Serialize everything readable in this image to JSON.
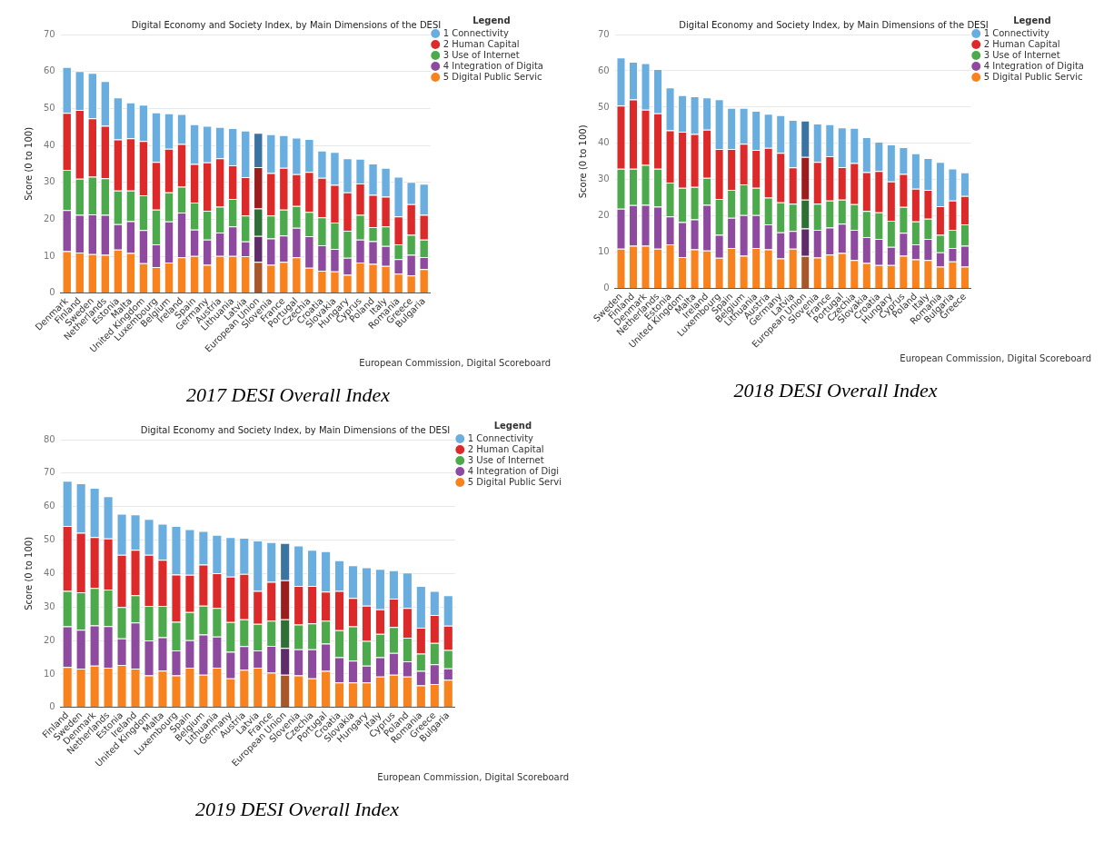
{
  "chart_data": [
    {
      "type": "bar",
      "stacked": true,
      "title": "Digital Economy and Society Index, by Main Dimensions of the DESI",
      "ylabel": "Score (0 to 100)",
      "legend_title": "Legend",
      "legend": "top right",
      "grid": "y",
      "ylim": [
        0,
        70
      ],
      "yticks": [
        0,
        10,
        20,
        30,
        40,
        50,
        60,
        70
      ],
      "annotations": [
        "European Commission, Digital Scoreboard",
        "2017 DESI Overall Index"
      ],
      "categories": [
        "Denmark",
        "Finland",
        "Sweden",
        "Netherlands",
        "Estonia",
        "Malta",
        "United Kingdom",
        "Luxembourg",
        "Belgium",
        "Ireland",
        "Spain",
        "Germany",
        "Austria",
        "Lithuania",
        "Latvia",
        "European Union",
        "Slovenia",
        "France",
        "Portugal",
        "Czechia",
        "Croatia",
        "Slovakia",
        "Hungary",
        "Cyprus",
        "Poland",
        "Italy",
        "Romania",
        "Greece",
        "Bulgaria"
      ],
      "series": [
        {
          "name": "5 Digital Public Servic",
          "color": "#f7821e",
          "colors": [
            "#f7821e",
            "#f7821e",
            "#f7821e",
            "#f7821e",
            "#f7821e",
            "#f7821e",
            "#f7821e",
            "#f7821e",
            "#f7821e",
            "#f7821e",
            "#f7821e",
            "#f7821e",
            "#f7821e",
            "#f7821e",
            "#f7821e",
            "#a8572a",
            "#f7821e",
            "#f7821e",
            "#f7821e",
            "#f7821e",
            "#f7821e",
            "#f7821e",
            "#f7821e",
            "#f7821e",
            "#f7821e",
            "#f7821e",
            "#f7821e",
            "#f7821e",
            "#f7821e"
          ],
          "values": [
            11.4,
            11.0,
            10.6,
            10.4,
            11.8,
            10.9,
            8.1,
            7.1,
            8.3,
            9.7,
            10.1,
            7.7,
            10.1,
            10.1,
            10.0,
            8.5,
            7.7,
            8.5,
            9.7,
            6.9,
            6.1,
            5.9,
            5.0,
            8.3,
            7.9,
            7.4,
            5.3,
            4.8,
            6.5
          ]
        },
        {
          "name": "4 Integration of Digita",
          "color": "#8e4a9e",
          "colors": [
            "#8e4a9e",
            "#8e4a9e",
            "#8e4a9e",
            "#8e4a9e",
            "#8e4a9e",
            "#8e4a9e",
            "#8e4a9e",
            "#8e4a9e",
            "#8e4a9e",
            "#8e4a9e",
            "#8e4a9e",
            "#8e4a9e",
            "#8e4a9e",
            "#8e4a9e",
            "#8e4a9e",
            "#5e2c68",
            "#8e4a9e",
            "#8e4a9e",
            "#8e4a9e",
            "#8e4a9e",
            "#8e4a9e",
            "#8e4a9e",
            "#8e4a9e",
            "#8e4a9e",
            "#8e4a9e",
            "#8e4a9e",
            "#8e4a9e",
            "#8e4a9e",
            "#8e4a9e"
          ],
          "values": [
            11.1,
            10.2,
            10.7,
            10.8,
            6.9,
            8.6,
            9.0,
            6.1,
            11.1,
            12.1,
            7.1,
            6.8,
            6.3,
            8.0,
            4.0,
            7.0,
            7.1,
            7.1,
            8.0,
            8.5,
            6.9,
            6.1,
            4.6,
            6.2,
            6.2,
            5.4,
            3.9,
            5.6,
            3.3
          ]
        },
        {
          "name": "3 Use of Internet",
          "color": "#4caa4c",
          "colors": [
            "#4caa4c",
            "#4caa4c",
            "#4caa4c",
            "#4caa4c",
            "#4caa4c",
            "#4caa4c",
            "#4caa4c",
            "#4caa4c",
            "#4caa4c",
            "#4caa4c",
            "#4caa4c",
            "#4caa4c",
            "#4caa4c",
            "#4caa4c",
            "#4caa4c",
            "#2f6e35",
            "#4caa4c",
            "#4caa4c",
            "#4caa4c",
            "#4caa4c",
            "#4caa4c",
            "#4caa4c",
            "#4caa4c",
            "#4caa4c",
            "#4caa4c",
            "#4caa4c",
            "#4caa4c",
            "#4caa4c",
            "#4caa4c"
          ],
          "values": [
            10.9,
            9.8,
            10.2,
            9.9,
            9.1,
            8.3,
            9.4,
            9.4,
            7.9,
            7.0,
            7.3,
            7.8,
            7.0,
            7.4,
            7.0,
            7.4,
            6.2,
            7.0,
            5.9,
            6.6,
            7.5,
            7.1,
            7.3,
            6.7,
            3.8,
            5.3,
            4.0,
            5.4,
            4.7
          ]
        },
        {
          "name": "2 Human Capital",
          "color": "#dc2a2a",
          "colors": [
            "#dc2a2a",
            "#dc2a2a",
            "#dc2a2a",
            "#dc2a2a",
            "#dc2a2a",
            "#dc2a2a",
            "#dc2a2a",
            "#dc2a2a",
            "#dc2a2a",
            "#dc2a2a",
            "#dc2a2a",
            "#dc2a2a",
            "#dc2a2a",
            "#dc2a2a",
            "#dc2a2a",
            "#9a1e1e",
            "#dc2a2a",
            "#dc2a2a",
            "#dc2a2a",
            "#dc2a2a",
            "#dc2a2a",
            "#dc2a2a",
            "#dc2a2a",
            "#dc2a2a",
            "#dc2a2a",
            "#dc2a2a",
            "#dc2a2a",
            "#dc2a2a",
            "#dc2a2a"
          ],
          "values": [
            15.4,
            18.6,
            15.8,
            14.2,
            13.8,
            14.1,
            14.7,
            12.9,
            11.8,
            11.6,
            10.5,
            13.1,
            13.1,
            9.1,
            10.4,
            11.2,
            11.5,
            11.3,
            8.6,
            10.8,
            10.7,
            10.2,
            10.4,
            8.5,
            8.7,
            8.0,
            7.6,
            8.3,
            6.7
          ]
        },
        {
          "name": "1 Connectivity",
          "color": "#6aaee0",
          "colors": [
            "#6aaee0",
            "#6aaee0",
            "#6aaee0",
            "#6aaee0",
            "#6aaee0",
            "#6aaee0",
            "#6aaee0",
            "#6aaee0",
            "#6aaee0",
            "#6aaee0",
            "#6aaee0",
            "#6aaee0",
            "#6aaee0",
            "#6aaee0",
            "#6aaee0",
            "#3b74a0",
            "#6aaee0",
            "#6aaee0",
            "#6aaee0",
            "#6aaee0",
            "#6aaee0",
            "#6aaee0",
            "#6aaee0",
            "#6aaee0",
            "#6aaee0",
            "#6aaee0",
            "#6aaee0",
            "#6aaee0",
            "#6aaee0"
          ],
          "values": [
            12.4,
            10.5,
            12.3,
            12.1,
            11.4,
            9.7,
            9.8,
            13.4,
            9.6,
            8.1,
            10.7,
            9.9,
            8.5,
            10.1,
            12.6,
            9.3,
            10.5,
            8.9,
            9.9,
            8.9,
            7.4,
            8.9,
            9.2,
            6.7,
            8.5,
            7.8,
            10.7,
            6.0,
            8.4
          ]
        }
      ]
    },
    {
      "type": "bar",
      "stacked": true,
      "title": "Digital Economy and Society Index, by Main Dimensions of the DESI",
      "ylabel": "Score (0 to 100)",
      "legend_title": "Legend",
      "legend": "top right",
      "grid": "y",
      "ylim": [
        0,
        70
      ],
      "yticks": [
        0,
        10,
        20,
        30,
        40,
        50,
        60,
        70
      ],
      "annotations": [
        "European Commission, Digital Scoreboard",
        "2018 DESI Overall Index"
      ],
      "categories": [
        "Sweden",
        "Finland",
        "Denmark",
        "Netherlands",
        "Estonia",
        "United Kingdom",
        "Malta",
        "Ireland",
        "Luxembourg",
        "Spain",
        "Belgium",
        "Lithuania",
        "Austria",
        "Germany",
        "Latvia",
        "European Union",
        "Slovenia",
        "France",
        "Portugal",
        "Czechia",
        "Slovakia",
        "Croatia",
        "Hungary",
        "Cyprus",
        "Poland",
        "Italy",
        "Romania",
        "Bulgaria",
        "Greece"
      ],
      "series": [
        {
          "name": "5 Digital Public Servic",
          "color": "#f7821e",
          "colors": [
            "#f7821e",
            "#f7821e",
            "#f7821e",
            "#f7821e",
            "#f7821e",
            "#f7821e",
            "#f7821e",
            "#f7821e",
            "#f7821e",
            "#f7821e",
            "#f7821e",
            "#f7821e",
            "#f7821e",
            "#f7821e",
            "#f7821e",
            "#a8572a",
            "#f7821e",
            "#f7821e",
            "#f7821e",
            "#f7821e",
            "#f7821e",
            "#f7821e",
            "#f7821e",
            "#f7821e",
            "#f7821e",
            "#f7821e",
            "#f7821e",
            "#f7821e",
            "#f7821e"
          ],
          "values": [
            11.0,
            11.8,
            11.8,
            11.0,
            12.2,
            8.7,
            10.8,
            10.5,
            8.5,
            11.2,
            9.1,
            11.2,
            10.8,
            8.3,
            11.0,
            9.0,
            8.6,
            9.4,
            9.8,
            7.9,
            7.1,
            6.5,
            6.5,
            9.1,
            8.1,
            7.9,
            6.1,
            7.5,
            6.1
          ]
        },
        {
          "name": "4 Integration of Digita",
          "color": "#8e4a9e",
          "colors": [
            "#8e4a9e",
            "#8e4a9e",
            "#8e4a9e",
            "#8e4a9e",
            "#8e4a9e",
            "#8e4a9e",
            "#8e4a9e",
            "#8e4a9e",
            "#8e4a9e",
            "#8e4a9e",
            "#8e4a9e",
            "#8e4a9e",
            "#8e4a9e",
            "#8e4a9e",
            "#8e4a9e",
            "#5e2c68",
            "#8e4a9e",
            "#8e4a9e",
            "#8e4a9e",
            "#8e4a9e",
            "#8e4a9e",
            "#8e4a9e",
            "#8e4a9e",
            "#8e4a9e",
            "#8e4a9e",
            "#8e4a9e",
            "#8e4a9e",
            "#8e4a9e",
            "#8e4a9e"
          ],
          "values": [
            11.0,
            11.2,
            11.3,
            11.6,
            7.7,
            9.6,
            8.3,
            12.6,
            6.3,
            8.3,
            11.2,
            9.1,
            6.9,
            7.2,
            4.9,
            7.6,
            7.6,
            7.4,
            8.1,
            8.3,
            7.1,
            7.2,
            5.0,
            6.3,
            4.1,
            5.8,
            3.9,
            3.7,
            5.7
          ]
        },
        {
          "name": "3 Use of Internet",
          "color": "#4caa4c",
          "colors": [
            "#4caa4c",
            "#4caa4c",
            "#4caa4c",
            "#4caa4c",
            "#4caa4c",
            "#4caa4c",
            "#4caa4c",
            "#4caa4c",
            "#4caa4c",
            "#4caa4c",
            "#4caa4c",
            "#4caa4c",
            "#4caa4c",
            "#4caa4c",
            "#4caa4c",
            "#2f6e35",
            "#4caa4c",
            "#4caa4c",
            "#4caa4c",
            "#4caa4c",
            "#4caa4c",
            "#4caa4c",
            "#4caa4c",
            "#4caa4c",
            "#4caa4c",
            "#4caa4c",
            "#4caa4c",
            "#4caa4c",
            "#4caa4c"
          ],
          "values": [
            11.0,
            10.0,
            11.0,
            10.4,
            9.3,
            9.5,
            8.9,
            7.4,
            9.9,
            7.7,
            8.4,
            7.5,
            7.4,
            8.3,
            7.5,
            7.9,
            7.2,
            7.5,
            6.6,
            7.1,
            7.2,
            7.3,
            7.2,
            7.1,
            6.3,
            5.6,
            4.8,
            5.0,
            5.9
          ]
        },
        {
          "name": "2 Human Capital",
          "color": "#dc2a2a",
          "colors": [
            "#dc2a2a",
            "#dc2a2a",
            "#dc2a2a",
            "#dc2a2a",
            "#dc2a2a",
            "#dc2a2a",
            "#dc2a2a",
            "#dc2a2a",
            "#dc2a2a",
            "#dc2a2a",
            "#dc2a2a",
            "#dc2a2a",
            "#dc2a2a",
            "#dc2a2a",
            "#dc2a2a",
            "#9a1e1e",
            "#dc2a2a",
            "#dc2a2a",
            "#dc2a2a",
            "#dc2a2a",
            "#dc2a2a",
            "#dc2a2a",
            "#dc2a2a",
            "#dc2a2a",
            "#dc2a2a",
            "#dc2a2a",
            "#dc2a2a",
            "#dc2a2a",
            "#dc2a2a"
          ],
          "values": [
            17.4,
            19.1,
            15.2,
            15.3,
            14.4,
            15.4,
            14.6,
            13.3,
            13.8,
            11.3,
            11.2,
            10.4,
            13.7,
            13.6,
            10.0,
            11.8,
            11.5,
            12.2,
            9.0,
            11.3,
            10.7,
            11.4,
            10.8,
            9.1,
            9.0,
            7.9,
            7.9,
            8.1,
            7.8
          ]
        },
        {
          "name": "1 Connectivity",
          "color": "#6aaee0",
          "colors": [
            "#6aaee0",
            "#6aaee0",
            "#6aaee0",
            "#6aaee0",
            "#6aaee0",
            "#6aaee0",
            "#6aaee0",
            "#6aaee0",
            "#6aaee0",
            "#6aaee0",
            "#6aaee0",
            "#6aaee0",
            "#6aaee0",
            "#6aaee0",
            "#6aaee0",
            "#3b74a0",
            "#6aaee0",
            "#6aaee0",
            "#6aaee0",
            "#6aaee0",
            "#6aaee0",
            "#6aaee0",
            "#6aaee0",
            "#6aaee0",
            "#6aaee0",
            "#6aaee0",
            "#6aaee0",
            "#6aaee0",
            "#6aaee0"
          ],
          "values": [
            13.3,
            10.4,
            12.8,
            12.2,
            11.8,
            10.1,
            10.4,
            8.9,
            13.7,
            11.3,
            9.9,
            10.8,
            9.4,
            10.4,
            13.1,
            10.0,
            10.6,
            8.8,
            10.9,
            9.7,
            9.6,
            8.1,
            10.2,
            7.4,
            9.8,
            8.8,
            12.2,
            8.8,
            6.5
          ]
        }
      ]
    },
    {
      "type": "bar",
      "stacked": true,
      "title": "Digital Economy and Society Index, by Main Dimensions of the DESI",
      "ylabel": "Score (0 to 100)",
      "legend_title": "Legend",
      "legend": "top right",
      "grid": "y",
      "ylim": [
        0,
        80
      ],
      "yticks": [
        0,
        10,
        20,
        30,
        40,
        50,
        60,
        70,
        80
      ],
      "annotations": [
        "European Commission, Digital Scoreboard",
        "2019 DESI Overall Index"
      ],
      "categories": [
        "Finland",
        "Sweden",
        "Denmark",
        "Netherlands",
        "Estonia",
        "Ireland",
        "United Kingdom",
        "Malta",
        "Luxembourg",
        "Spain",
        "Belgium",
        "Lithuania",
        "Germany",
        "Austria",
        "Latvia",
        "France",
        "European Union",
        "Slovenia",
        "Czechia",
        "Portugal",
        "Croatia",
        "Slovakia",
        "Hungary",
        "Italy",
        "Cyprus",
        "Poland",
        "Romania",
        "Greece",
        "Bulgaria"
      ],
      "series": [
        {
          "name": "5 Digital Public Servi",
          "color": "#f7821e",
          "colors": [
            "#f7821e",
            "#f7821e",
            "#f7821e",
            "#f7821e",
            "#f7821e",
            "#f7821e",
            "#f7821e",
            "#f7821e",
            "#f7821e",
            "#f7821e",
            "#f7821e",
            "#f7821e",
            "#f7821e",
            "#f7821e",
            "#f7821e",
            "#f7821e",
            "#a8572a",
            "#f7821e",
            "#f7821e",
            "#f7821e",
            "#f7821e",
            "#f7821e",
            "#f7821e",
            "#f7821e",
            "#f7821e",
            "#f7821e",
            "#f7821e",
            "#f7821e",
            "#f7821e"
          ],
          "values": [
            12.1,
            11.6,
            12.5,
            11.9,
            12.7,
            11.6,
            9.6,
            11.0,
            9.6,
            11.9,
            9.8,
            11.9,
            8.7,
            11.3,
            11.9,
            10.4,
            9.8,
            9.6,
            8.7,
            10.9,
            7.5,
            7.5,
            7.5,
            9.2,
            9.8,
            9.2,
            6.6,
            7.0,
            8.3
          ]
        },
        {
          "name": "4 Integration of Digi",
          "color": "#8e4a9e",
          "colors": [
            "#8e4a9e",
            "#8e4a9e",
            "#8e4a9e",
            "#8e4a9e",
            "#8e4a9e",
            "#8e4a9e",
            "#8e4a9e",
            "#8e4a9e",
            "#8e4a9e",
            "#8e4a9e",
            "#8e4a9e",
            "#8e4a9e",
            "#8e4a9e",
            "#8e4a9e",
            "#8e4a9e",
            "#8e4a9e",
            "#5e2c68",
            "#8e4a9e",
            "#8e4a9e",
            "#8e4a9e",
            "#8e4a9e",
            "#8e4a9e",
            "#8e4a9e",
            "#8e4a9e",
            "#8e4a9e",
            "#8e4a9e",
            "#8e4a9e",
            "#8e4a9e",
            "#8e4a9e"
          ],
          "values": [
            12.1,
            11.6,
            12.0,
            12.4,
            7.9,
            13.8,
            10.4,
            10.0,
            7.4,
            8.2,
            12.0,
            9.3,
            7.9,
            7.0,
            5.1,
            8.0,
            8.0,
            7.8,
            8.7,
            8.2,
            7.5,
            6.5,
            5.0,
            5.8,
            6.5,
            4.6,
            4.3,
            5.9,
            3.4
          ]
        },
        {
          "name": "3 Use of Internet",
          "color": "#4caa4c",
          "colors": [
            "#4caa4c",
            "#4caa4c",
            "#4caa4c",
            "#4caa4c",
            "#4caa4c",
            "#4caa4c",
            "#4caa4c",
            "#4caa4c",
            "#4caa4c",
            "#4caa4c",
            "#4caa4c",
            "#4caa4c",
            "#4caa4c",
            "#4caa4c",
            "#4caa4c",
            "#4caa4c",
            "#2f6e35",
            "#4caa4c",
            "#4caa4c",
            "#4caa4c",
            "#4caa4c",
            "#4caa4c",
            "#4caa4c",
            "#4caa4c",
            "#4caa4c",
            "#4caa4c",
            "#4caa4c",
            "#4caa4c",
            "#4caa4c"
          ],
          "values": [
            10.6,
            11.2,
            11.2,
            10.9,
            9.4,
            8.1,
            10.3,
            9.3,
            8.6,
            8.4,
            8.6,
            8.5,
            8.9,
            8.0,
            8.0,
            7.5,
            8.5,
            7.4,
            7.7,
            6.8,
            8.1,
            10.2,
            7.4,
            7.0,
            7.7,
            7.0,
            5.2,
            6.4,
            5.5
          ]
        },
        {
          "name": "2 Human Capital",
          "color": "#dc2a2a",
          "colors": [
            "#dc2a2a",
            "#dc2a2a",
            "#dc2a2a",
            "#dc2a2a",
            "#dc2a2a",
            "#dc2a2a",
            "#dc2a2a",
            "#dc2a2a",
            "#dc2a2a",
            "#dc2a2a",
            "#dc2a2a",
            "#dc2a2a",
            "#dc2a2a",
            "#dc2a2a",
            "#dc2a2a",
            "#dc2a2a",
            "#9a1e1e",
            "#dc2a2a",
            "#dc2a2a",
            "#dc2a2a",
            "#dc2a2a",
            "#dc2a2a",
            "#dc2a2a",
            "#dc2a2a",
            "#dc2a2a",
            "#dc2a2a",
            "#dc2a2a",
            "#dc2a2a",
            "#dc2a2a"
          ],
          "values": [
            19.4,
            17.8,
            15.2,
            15.3,
            15.6,
            13.6,
            15.3,
            13.8,
            14.1,
            11.1,
            12.3,
            10.4,
            13.6,
            13.6,
            9.8,
            11.6,
            11.7,
            11.5,
            11.2,
            8.7,
            11.7,
            8.5,
            10.5,
            7.3,
            8.5,
            8.9,
            7.7,
            8.3,
            7.2
          ]
        },
        {
          "name": "1 Connectivity",
          "color": "#6aaee0",
          "colors": [
            "#6aaee0",
            "#6aaee0",
            "#6aaee0",
            "#6aaee0",
            "#6aaee0",
            "#6aaee0",
            "#6aaee0",
            "#6aaee0",
            "#6aaee0",
            "#6aaee0",
            "#6aaee0",
            "#6aaee0",
            "#6aaee0",
            "#6aaee0",
            "#6aaee0",
            "#6aaee0",
            "#3b74a0",
            "#6aaee0",
            "#6aaee0",
            "#6aaee0",
            "#6aaee0",
            "#6aaee0",
            "#6aaee0",
            "#6aaee0",
            "#6aaee0",
            "#6aaee0",
            "#6aaee0",
            "#6aaee0",
            "#6aaee0"
          ],
          "values": [
            13.5,
            14.8,
            14.7,
            12.6,
            12.3,
            10.6,
            10.7,
            10.8,
            14.5,
            13.7,
            10.0,
            11.5,
            11.8,
            10.8,
            15.1,
            11.9,
            11.1,
            12.1,
            10.8,
            12.1,
            9.2,
            9.8,
            11.5,
            12.1,
            8.5,
            10.6,
            12.5,
            7.2,
            9.1
          ]
        }
      ]
    }
  ]
}
